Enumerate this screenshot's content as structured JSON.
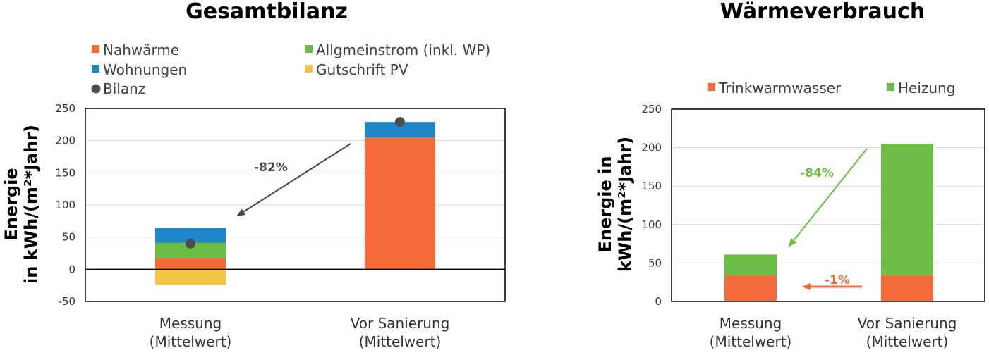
{
  "colors": {
    "nahwaerme": "#F26B38",
    "allgmeinstrom": "#6CBD45",
    "wohnungen": "#1E88C8",
    "gutschrift": "#F4C542",
    "bilanz": "#4A4F52",
    "trinkwarmwasser": "#F26B38",
    "heizung": "#6CBD45",
    "arrow_dark": "#3E4A4F",
    "arrow_green": "#6CBD45",
    "arrow_orange": "#F26B38",
    "grid": "#D9D9D9"
  },
  "chart_data": [
    {
      "type": "bar",
      "stacked": true,
      "title": "Gesamtbilanz",
      "ylabel": [
        "Energie",
        "in kWh/(m²*Jahr)"
      ],
      "ylim": [
        -50,
        250
      ],
      "yticks": [
        250,
        200,
        150,
        100,
        50,
        0,
        -50
      ],
      "grid": true,
      "categories": [
        [
          "Messung",
          "(Mittelwert)"
        ],
        [
          "Vor Sanierung",
          "(Mittelwert)"
        ]
      ],
      "legend": [
        {
          "name": "Nahwärme",
          "color_key": "nahwaerme",
          "marker": "square"
        },
        {
          "name": "Allgmeinstrom (inkl. WP)",
          "color_key": "allgmeinstrom",
          "marker": "square"
        },
        {
          "name": "Wohnungen",
          "color_key": "wohnungen",
          "marker": "square"
        },
        {
          "name": "Gutschrift PV",
          "color_key": "gutschrift",
          "marker": "square"
        },
        {
          "name": "Bilanz",
          "color_key": "bilanz",
          "marker": "circle"
        }
      ],
      "series": [
        {
          "name": "Nahwärme",
          "color_key": "nahwaerme",
          "values": [
            18,
            205
          ]
        },
        {
          "name": "Allgmeinstrom (inkl. WP)",
          "color_key": "allgmeinstrom",
          "values": [
            23,
            0
          ]
        },
        {
          "name": "Wohnungen",
          "color_key": "wohnungen",
          "values": [
            23,
            24
          ]
        },
        {
          "name": "Gutschrift PV",
          "color_key": "gutschrift",
          "values": [
            -24,
            0
          ]
        }
      ],
      "bilanz": [
        40,
        229
      ],
      "annotation": {
        "label": "-82%",
        "color_key": "arrow_dark"
      }
    },
    {
      "type": "bar",
      "stacked": true,
      "title": "Wärmeverbrauch",
      "ylabel": [
        "Energie in",
        "kWh/(m²*Jahr)"
      ],
      "ylim": [
        0,
        250
      ],
      "yticks": [
        250,
        200,
        150,
        100,
        50,
        0
      ],
      "grid": true,
      "categories": [
        [
          "Messung",
          "(Mittelwert)"
        ],
        [
          "Vor Sanierung",
          "(Mittelwert)"
        ]
      ],
      "legend": [
        {
          "name": "Trinkwarmwasser",
          "color_key": "trinkwarmwasser",
          "marker": "square"
        },
        {
          "name": "Heizung",
          "color_key": "heizung",
          "marker": "square"
        }
      ],
      "series": [
        {
          "name": "Trinkwarmwasser",
          "color_key": "trinkwarmwasser",
          "values": [
            34,
            34
          ]
        },
        {
          "name": "Heizung",
          "color_key": "heizung",
          "values": [
            27,
            171
          ]
        }
      ],
      "annotations": [
        {
          "label": "-84%",
          "color_key": "arrow_green"
        },
        {
          "label": "-1%",
          "color_key": "arrow_orange"
        }
      ]
    }
  ]
}
